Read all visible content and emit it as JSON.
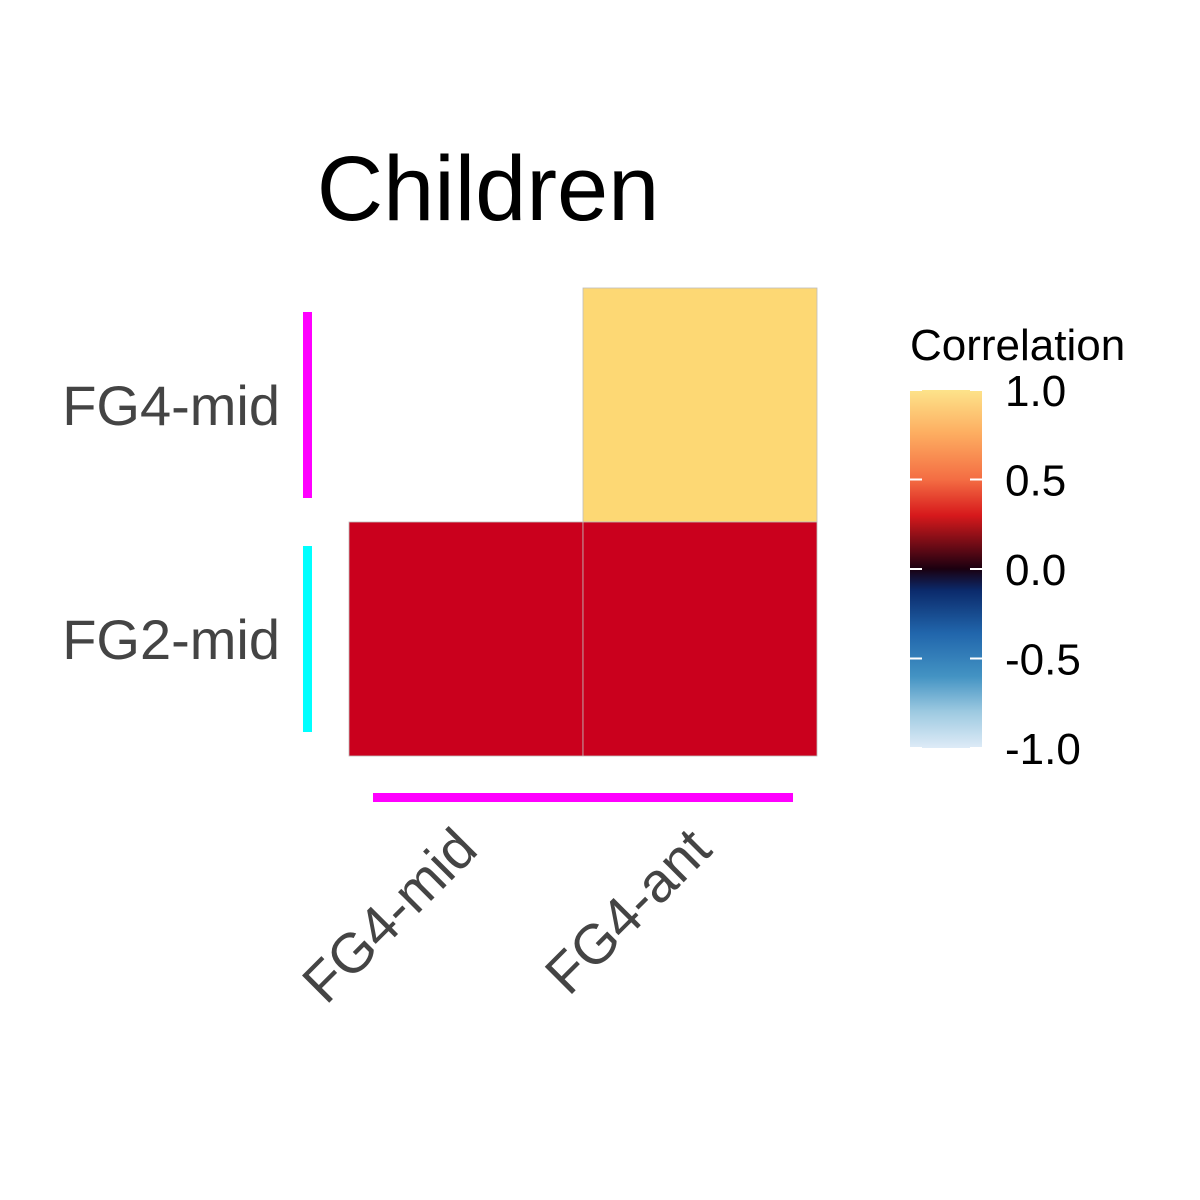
{
  "chart_data": {
    "type": "heatmap",
    "title": "Children",
    "x_categories": [
      "FG4-mid",
      "FG4-ant"
    ],
    "y_categories": [
      "FG4-mid",
      "FG2-mid"
    ],
    "cells": [
      {
        "x": "FG4-ant",
        "y": "FG4-mid",
        "value": 1.0
      },
      {
        "x": "FG4-mid",
        "y": "FG2-mid",
        "value": 0.45
      },
      {
        "x": "FG4-ant",
        "y": "FG2-mid",
        "value": 0.45
      }
    ],
    "legend": {
      "title": "Correlation",
      "range": [
        -1.0,
        1.0
      ],
      "ticks": [
        "1.0",
        "0.5",
        "0.0",
        "-0.5",
        "-1.0"
      ],
      "placement": "right"
    },
    "group_bars": {
      "y": [
        {
          "category": "FG4-mid",
          "color": "#ff00ff"
        },
        {
          "category": "FG2-mid",
          "color": "#00ffff"
        }
      ],
      "x": [
        {
          "categories": [
            "FG4-mid",
            "FG4-ant"
          ],
          "color": "#ff00ff"
        }
      ]
    },
    "colors": {
      "cell_high": "#fdd874",
      "cell_mid": "#ca001d",
      "gradient_stops": [
        "#fde38a",
        "#fdae61",
        "#f46d43",
        "#d7191c",
        "#67001f",
        "#0b2a6b",
        "#2166ac",
        "#4393c3",
        "#9ecae1",
        "#deebf7"
      ]
    }
  }
}
